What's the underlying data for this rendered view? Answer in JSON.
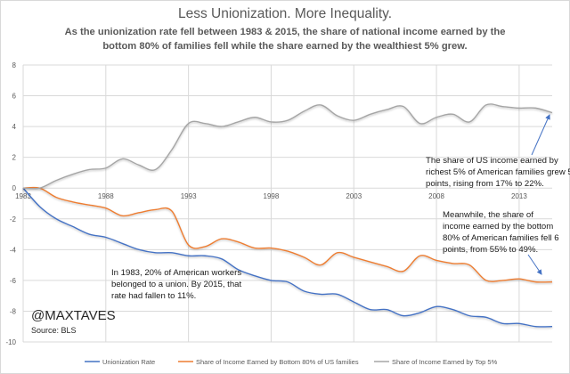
{
  "chart_data": {
    "type": "line",
    "title": "Less Unionization. More Inequality.",
    "subtitle_lines": [
      "As the unionization rate fell between 1983 & 2015, the share of national income earned by the",
      "bottom 80% of families  fell while the share earned by the wealthiest 5% grew."
    ],
    "xlabel": "",
    "ylabel": "",
    "xlim": [
      1983,
      2015
    ],
    "ylim": [
      -10,
      8
    ],
    "y_ticks": [
      8,
      6,
      4,
      2,
      0,
      -2,
      -4,
      -6,
      -8,
      -10
    ],
    "y_tick_labels": [
      "8",
      "6",
      "4",
      "2",
      "0",
      "-2",
      "-4",
      "-6",
      "-8",
      "-10"
    ],
    "x_ticks": [
      1983,
      1988,
      1993,
      1998,
      2003,
      2008,
      2013
    ],
    "x_tick_labels": [
      "1983",
      "1988",
      "1993",
      "1998",
      "2003",
      "2008",
      "2013"
    ],
    "grid": true,
    "legend_position": "bottom",
    "x": [
      1983,
      1984,
      1985,
      1986,
      1987,
      1988,
      1989,
      1990,
      1991,
      1992,
      1993,
      1994,
      1995,
      1996,
      1997,
      1998,
      1999,
      2000,
      2001,
      2002,
      2003,
      2004,
      2005,
      2006,
      2007,
      2008,
      2009,
      2010,
      2011,
      2012,
      2013,
      2014,
      2015
    ],
    "series": [
      {
        "name": "Unionization Rate",
        "color": "#4472c4",
        "values": [
          0,
          -1.2,
          -2.0,
          -2.5,
          -3.0,
          -3.2,
          -3.6,
          -4.0,
          -4.2,
          -4.2,
          -4.4,
          -4.4,
          -4.6,
          -5.3,
          -5.7,
          -6.0,
          -6.1,
          -6.7,
          -6.9,
          -6.9,
          -7.4,
          -7.9,
          -7.9,
          -8.3,
          -8.1,
          -7.7,
          -7.9,
          -8.3,
          -8.4,
          -8.8,
          -8.8,
          -9.0,
          -9.0
        ]
      },
      {
        "name": "Share of Income Earned by Bottom 80% of US families",
        "color": "#ed7d31",
        "values": [
          0,
          0,
          -0.6,
          -0.9,
          -1.1,
          -1.3,
          -1.8,
          -1.6,
          -1.4,
          -1.5,
          -3.7,
          -3.8,
          -3.3,
          -3.5,
          -3.9,
          -3.9,
          -4.1,
          -4.5,
          -5.0,
          -4.2,
          -4.5,
          -4.8,
          -5.1,
          -5.4,
          -4.4,
          -4.7,
          -4.9,
          -5.0,
          -6.0,
          -6.0,
          -5.9,
          -6.1,
          -6.1
        ]
      },
      {
        "name": "Share of Income Earned by Top 5%",
        "color": "#a5a5a5",
        "values": [
          0,
          0,
          0.5,
          0.9,
          1.2,
          1.3,
          1.9,
          1.5,
          1.2,
          2.5,
          4.2,
          4.2,
          4.0,
          4.3,
          4.6,
          4.3,
          4.4,
          5.0,
          5.4,
          4.7,
          4.4,
          4.8,
          5.1,
          5.3,
          4.2,
          4.6,
          4.8,
          4.3,
          5.4,
          5.3,
          5.2,
          5.2,
          4.9
        ]
      }
    ],
    "annotations": [
      {
        "id": "top5",
        "lines": [
          "The share of US income earned by",
          "richest 5% of American families grew 5",
          "points, rising from 17% to 22%."
        ]
      },
      {
        "id": "bottom80",
        "lines": [
          "Meanwhile, the share of",
          "income earned by the bottom",
          "80% of American families fell 6",
          "points, from 55% to 49%."
        ]
      },
      {
        "id": "union",
        "lines": [
          "In 1983, 20% of American workers",
          "belonged to a union. By 2015, that",
          "rate had fallen to 11%."
        ]
      }
    ],
    "watermark": "@MAXTAVES",
    "source": "Source: BLS",
    "arrow_color": "#4472c4"
  }
}
